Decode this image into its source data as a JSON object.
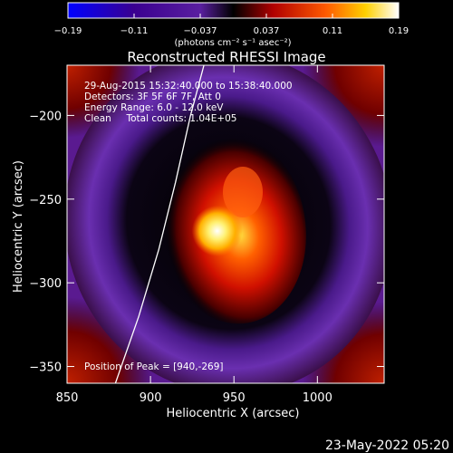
{
  "chart_data": {
    "type": "heatmap",
    "title": "Reconstructed RHESSI Image",
    "xlabel": "Heliocentric X (arcsec)",
    "ylabel": "Heliocentric Y (arcsec)",
    "xlim": [
      850,
      1040
    ],
    "ylim": [
      -360,
      -170
    ],
    "x_ticks": [
      850,
      900,
      950,
      1000
    ],
    "y_ticks": [
      -200,
      -250,
      -300,
      -350
    ],
    "colorbar": {
      "range": [
        -0.19,
        0.19
      ],
      "ticks": [
        "-0.19",
        "-0.11",
        "-0.037",
        "0.037",
        "0.11",
        "0.19"
      ],
      "units_label": "(photons cm⁻² s⁻¹ asec⁻²)"
    },
    "annotations": {
      "line1": "29-Aug-2015 15:32:40.000 to 15:38:40.000",
      "line2": "Detectors: 3F 5F 6F 7F, Att 0",
      "line3": "Energy Range: 6.0 - 12.0 keV",
      "line4": "Clean     Total counts: 1.04E+05",
      "peak": "Position of Peak = [940,-269]"
    },
    "peak": {
      "x": 940,
      "y": -269
    },
    "limb_curve": [
      [
        879,
        -360
      ],
      [
        893,
        -320
      ],
      [
        905,
        -280
      ],
      [
        915,
        -240
      ],
      [
        924,
        -200
      ],
      [
        932,
        -170
      ]
    ],
    "timestamp": "23-May-2022 05:20"
  }
}
